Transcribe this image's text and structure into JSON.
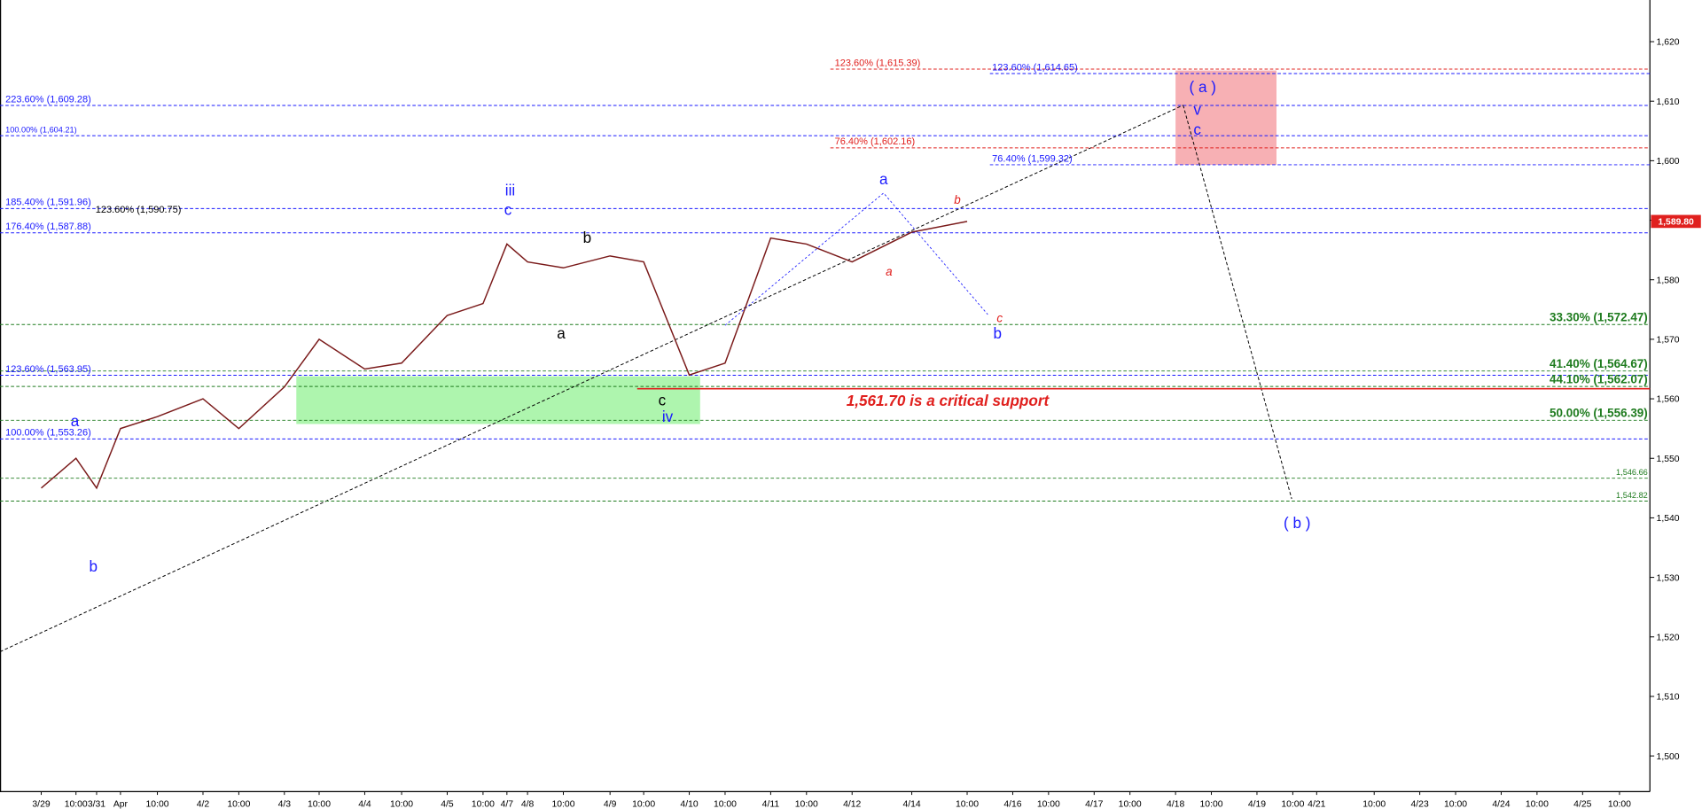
{
  "chart_data": {
    "type": "line",
    "categories": [
      "3/29",
      "10:00",
      "3/31",
      "Apr",
      "10:00",
      "4/2",
      "10:00",
      "4/3",
      "10:00",
      "4/4",
      "10:00",
      "4/5",
      "10:00",
      "4/7",
      "4/8",
      "10:00",
      "4/9",
      "10:00",
      "4/10",
      "10:00",
      "4/11",
      "10:00",
      "4/12",
      "4/14",
      "10:00",
      "4/16",
      "10:00",
      "4/17",
      "10:00",
      "4/18",
      "10:00",
      "4/19",
      "10:00",
      "4/21",
      "10:00",
      "4/23",
      "10:00",
      "4/24",
      "10:00",
      "4/25",
      "10:00"
    ],
    "series": [
      {
        "name": "Price",
        "color": "#7a1a1a",
        "values": [
          1545,
          1550,
          1545,
          1555,
          1557,
          1560,
          1555,
          1562,
          1570,
          1565,
          1566,
          1574,
          1576,
          1586,
          1583,
          1582,
          1584,
          1583,
          1564,
          1566,
          1587,
          1586,
          1583,
          1588,
          1589.8,
          null,
          null,
          null,
          null,
          null,
          null,
          null,
          null,
          null,
          null,
          null,
          null,
          null,
          null,
          null,
          null
        ]
      }
    ],
    "ylim": [
      1494,
      1627
    ],
    "yticks": [
      {
        "value": 1500,
        "label": "1,500"
      },
      {
        "value": 1510,
        "label": "1,510"
      },
      {
        "value": 1520,
        "label": "1,520"
      },
      {
        "value": 1530,
        "label": "1,530"
      },
      {
        "value": 1540,
        "label": "1,540"
      },
      {
        "value": 1550,
        "label": "1,550"
      },
      {
        "value": 1560,
        "label": "1,560"
      },
      {
        "value": 1570,
        "label": "1,570"
      },
      {
        "value": 1580,
        "label": "1,580"
      },
      {
        "value": 1590,
        "label": "1,590"
      },
      {
        "value": 1600,
        "label": "1,600"
      },
      {
        "value": 1610,
        "label": "1,610"
      },
      {
        "value": 1620,
        "label": "1,620"
      }
    ],
    "last_price": {
      "value": 1589.8,
      "label": "1,589.80",
      "color": "#e0201e"
    },
    "levels": [
      {
        "label": "123.60% (1,615.39)",
        "value": 1615.39,
        "color": "#e0201e",
        "style": "dashed"
      },
      {
        "label": "123.60% (1,614.65)",
        "value": 1614.65,
        "color": "#1a1aff",
        "style": "dashed"
      },
      {
        "label": "223.60% (1,609.28)",
        "value": 1609.28,
        "color": "#1a1aff",
        "style": "dashed"
      },
      {
        "label": "100.00% (1,604.21)",
        "value": 1604.21,
        "color": "#1a1aff",
        "style": "dashed"
      },
      {
        "label": "76.40% (1,602.16)",
        "value": 1602.16,
        "color": "#e0201e",
        "style": "dashed"
      },
      {
        "label": "76.40% (1,599.32)",
        "value": 1599.32,
        "color": "#1a1aff",
        "style": "dashed"
      },
      {
        "label": "185.40% (1,591.96)",
        "value": 1591.96,
        "color": "#1a1aff",
        "style": "dashed"
      },
      {
        "label": "123.60% (1,590.75)",
        "value": 1590.75,
        "color": "#000000",
        "style": "none"
      },
      {
        "label": "176.40% (1,587.88)",
        "value": 1587.88,
        "color": "#1a1aff",
        "style": "dashed"
      },
      {
        "label": "33.30% (1,572.47)",
        "value": 1572.47,
        "color": "#1e7b1e",
        "style": "dashed"
      },
      {
        "label": "41.40% (1,564.67)",
        "value": 1564.67,
        "color": "#1e7b1e",
        "style": "dashed"
      },
      {
        "label": "123.60% (1,563.95)",
        "value": 1563.95,
        "color": "#1a1aff",
        "style": "dashed"
      },
      {
        "label": "44.10% (1,562.07)",
        "value": 1562.07,
        "color": "#1e7b1e",
        "style": "dashed"
      },
      {
        "label": "1,561.70 is a critical support",
        "value": 1561.7,
        "color": "#e0201e",
        "style": "solid"
      },
      {
        "label": "50.00% (1,556.39)",
        "value": 1556.39,
        "color": "#1e7b1e",
        "style": "dashed"
      },
      {
        "label": "100.00% (1,553.26)",
        "value": 1553.26,
        "color": "#1a1aff",
        "style": "dashed"
      },
      {
        "label": "1,546.66",
        "value": 1546.66,
        "color": "#1e7b1e",
        "style": "dashed"
      },
      {
        "label": "1,542.82",
        "value": 1542.82,
        "color": "#1e7b1e",
        "style": "dashed"
      }
    ],
    "wave_labels": [
      {
        "text": "a",
        "color": "#1a1aff"
      },
      {
        "text": "b",
        "color": "#1a1aff"
      },
      {
        "text": "iii",
        "color": "#1a1aff"
      },
      {
        "text": "c",
        "color": "#1a1aff"
      },
      {
        "text": "b",
        "color": "#000000"
      },
      {
        "text": "a",
        "color": "#000000"
      },
      {
        "text": "c",
        "color": "#000000"
      },
      {
        "text": "iv",
        "color": "#1a1aff"
      },
      {
        "text": "a",
        "color": "#1a1aff"
      },
      {
        "text": "b",
        "color": "#e0201e"
      },
      {
        "text": "a",
        "color": "#e0201e"
      },
      {
        "text": "c",
        "color": "#e0201e"
      },
      {
        "text": "b",
        "color": "#1a1aff"
      },
      {
        "text": "( a )",
        "color": "#1a1aff"
      },
      {
        "text": "v",
        "color": "#1a1aff"
      },
      {
        "text": "c",
        "color": "#1a1aff"
      },
      {
        "text": "( b )",
        "color": "#1a1aff"
      }
    ]
  }
}
